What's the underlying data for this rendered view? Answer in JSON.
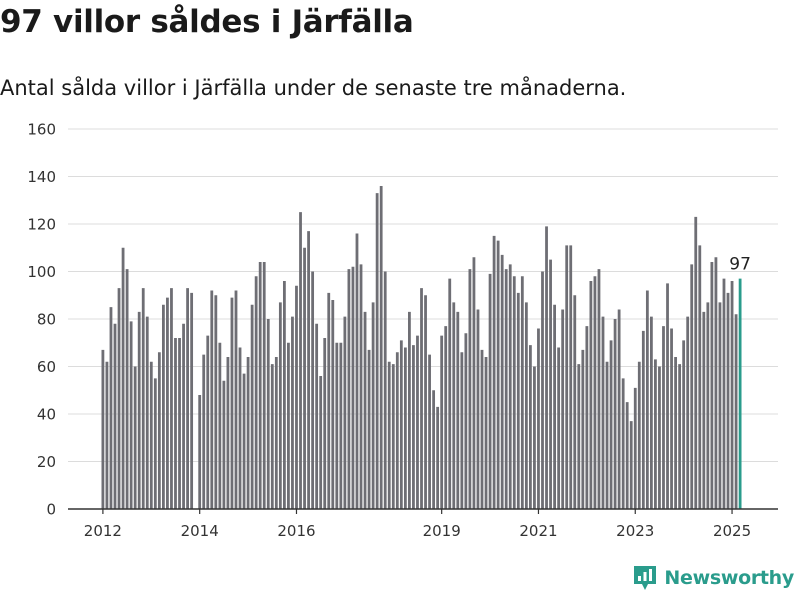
{
  "title": "97 villor såldes i Järfälla",
  "subtitle": "Antal sålda villor i Järfälla under de senaste tre månaderna.",
  "brand": {
    "name": "Newsworthy",
    "icon": "newsworthy-logo-icon"
  },
  "colors": {
    "bar": "#6e6e74",
    "highlight": "#2a9c8c",
    "grid": "#dcdcdc",
    "axis": "#333333",
    "text": "#333333"
  },
  "chart_data": {
    "type": "bar",
    "title": "97 villor såldes i Järfälla",
    "subtitle": "Antal sålda villor i Järfälla under de senaste tre månaderna.",
    "xlabel": "",
    "ylabel": "",
    "ylim": [
      0,
      160
    ],
    "yticks": [
      0,
      20,
      40,
      60,
      80,
      100,
      120,
      140,
      160
    ],
    "xticks": [
      "2012",
      "2014",
      "2016",
      "2019",
      "2021",
      "2023",
      "2025"
    ],
    "grid": true,
    "legend": "none",
    "highlight": {
      "label": "97",
      "value": 97
    },
    "start": "2012-01",
    "frequency": "monthly",
    "values": [
      67,
      62,
      85,
      78,
      93,
      110,
      101,
      79,
      60,
      83,
      93,
      81,
      62,
      55,
      66,
      86,
      89,
      93,
      72,
      72,
      78,
      93,
      91,
      0,
      48,
      65,
      73,
      92,
      90,
      70,
      54,
      64,
      89,
      92,
      68,
      57,
      64,
      86,
      98,
      104,
      104,
      80,
      61,
      64,
      87,
      96,
      70,
      81,
      94,
      125,
      110,
      117,
      100,
      78,
      56,
      72,
      91,
      88,
      70,
      70,
      81,
      101,
      102,
      116,
      103,
      83,
      67,
      87,
      133,
      136,
      100,
      62,
      61,
      66,
      71,
      68,
      83,
      69,
      73,
      93,
      90,
      65,
      50,
      43,
      73,
      77,
      97,
      87,
      83,
      66,
      74,
      101,
      106,
      84,
      67,
      64,
      99,
      115,
      113,
      107,
      101,
      103,
      98,
      91,
      98,
      87,
      69,
      60,
      76,
      100,
      119,
      105,
      86,
      68,
      84,
      111,
      111,
      90,
      61,
      67,
      77,
      96,
      98,
      101,
      81,
      62,
      71,
      80,
      84,
      55,
      45,
      37,
      51,
      62,
      75,
      92,
      81,
      63,
      60,
      77,
      95,
      76,
      64,
      61,
      71,
      81,
      103,
      123,
      111,
      83,
      87,
      104,
      106,
      87,
      97,
      91,
      96,
      82,
      97
    ]
  }
}
